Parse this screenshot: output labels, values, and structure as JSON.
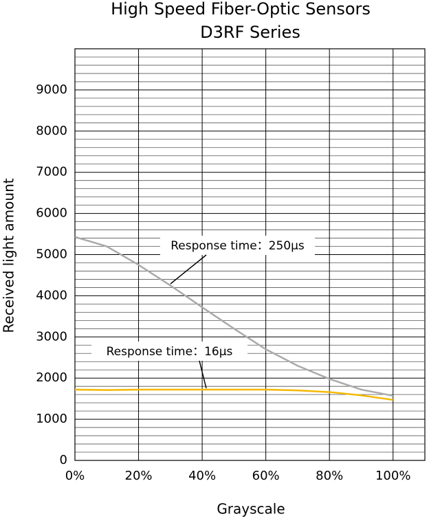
{
  "chart_data": {
    "type": "line",
    "title": "High Speed Fiber-Optic Sensors",
    "subtitle": "D3RF Series",
    "x_label": "Grayscale",
    "y_label": "Received light amount",
    "x": [
      0,
      10,
      20,
      30,
      40,
      50,
      60,
      70,
      80,
      90,
      100
    ],
    "series": [
      {
        "name": "Response time：250μs",
        "color": "#aaaaaa",
        "values": [
          5430,
          5200,
          4750,
          4250,
          3720,
          3200,
          2700,
          2300,
          1980,
          1720,
          1570
        ]
      },
      {
        "name": "Response time：16μs",
        "color": "#f5b800",
        "values": [
          1720,
          1710,
          1720,
          1720,
          1720,
          1720,
          1720,
          1700,
          1660,
          1580,
          1470
        ]
      }
    ],
    "xlim": [
      0,
      110
    ],
    "ylim": [
      0,
      10000
    ],
    "xticks": [
      {
        "value": 0,
        "label": "0%"
      },
      {
        "value": 20,
        "label": "20%"
      },
      {
        "value": 40,
        "label": "40%"
      },
      {
        "value": 60,
        "label": "60%"
      },
      {
        "value": 80,
        "label": "80%"
      },
      {
        "value": 100,
        "label": "100%"
      }
    ],
    "yticks": [
      0,
      1000,
      2000,
      3000,
      4000,
      5000,
      6000,
      7000,
      8000,
      9000
    ],
    "y_minor_ticks": [
      200,
      400,
      600,
      800,
      1200,
      1400,
      1600,
      1800,
      2200,
      2400,
      2600,
      2800,
      3200,
      3400,
      3600,
      3800,
      4200,
      4400,
      4600,
      4800,
      5200,
      5400,
      5600,
      5800,
      6200,
      6400,
      6600,
      6800,
      7200,
      7400,
      7600,
      7800,
      8200,
      8400,
      8600,
      8800,
      9200,
      9400,
      9600,
      9800
    ],
    "grid": true
  }
}
